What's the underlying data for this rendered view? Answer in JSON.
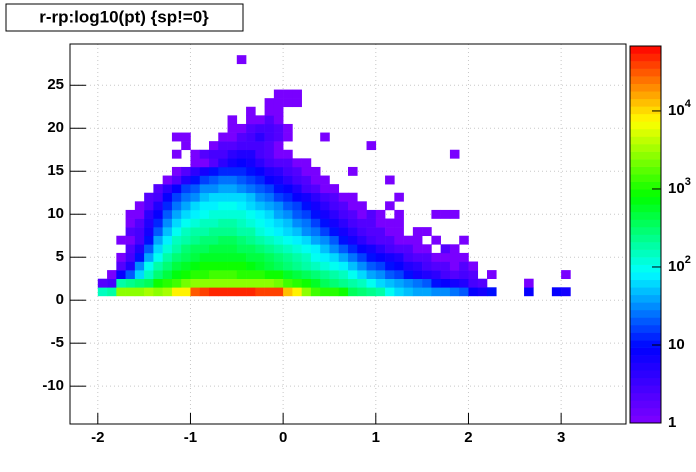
{
  "chart_data": {
    "type": "heatmap2d",
    "title": "r-rp:log10(pt) {sp!=0}",
    "xbins": [
      -2.0,
      -1.9,
      -1.8,
      -1.7,
      -1.6,
      -1.5,
      -1.4,
      -1.3,
      -1.2,
      -1.1,
      -1.0,
      -0.9,
      -0.8,
      -0.7,
      -0.6,
      -0.5,
      -0.4,
      -0.3,
      -0.2,
      -0.1,
      0.0,
      0.1,
      0.2,
      0.3,
      0.4,
      0.5,
      0.6,
      0.7,
      0.8,
      0.9,
      1.0,
      1.1,
      1.2,
      1.3,
      1.4,
      1.5,
      1.6,
      1.7,
      1.8,
      1.9,
      2.0,
      2.1,
      2.2,
      2.3,
      2.4,
      2.5,
      2.6,
      2.7,
      2.8,
      2.9,
      3.0,
      3.1
    ],
    "ybins": [
      0.5,
      1.5,
      2.5,
      3.5,
      4.5,
      5.5,
      6.5,
      7.5,
      8.5,
      9.5,
      10.5,
      11.5,
      12.5,
      13.5,
      14.5,
      15.5,
      16.5,
      17.5,
      18.5,
      19.5,
      20.5,
      21.5,
      22.5,
      23.5,
      24.5,
      25.5,
      26.5,
      27.5,
      28.5
    ],
    "z": [
      [
        150,
        200,
        2500,
        3000,
        3000,
        3500,
        3000,
        3500,
        9000,
        9000,
        30000,
        40000,
        45000,
        45000,
        45000,
        45000,
        45000,
        40000,
        40000,
        35000,
        12000,
        9000,
        3000,
        1500,
        1200,
        1000,
        800,
        400,
        300,
        250,
        200,
        100,
        60,
        50,
        40,
        40,
        30,
        30,
        25,
        20,
        8,
        6,
        10,
        0,
        0,
        0,
        8,
        0,
        0,
        8,
        6
      ],
      [
        2,
        3,
        200,
        250,
        300,
        400,
        800,
        1000,
        1500,
        2000,
        2500,
        3000,
        3000,
        3000,
        3000,
        3000,
        3000,
        2500,
        2500,
        2000,
        1500,
        1000,
        800,
        600,
        400,
        300,
        250,
        200,
        150,
        100,
        60,
        50,
        40,
        30,
        25,
        20,
        10,
        8,
        6,
        5,
        3,
        2,
        0,
        0,
        0,
        0,
        1,
        0,
        0,
        0,
        0
      ],
      [
        0,
        1,
        8,
        20,
        60,
        150,
        300,
        500,
        700,
        900,
        1000,
        1200,
        1300,
        1300,
        1300,
        1200,
        1100,
        1000,
        900,
        800,
        600,
        500,
        400,
        300,
        250,
        200,
        150,
        100,
        60,
        40,
        30,
        20,
        15,
        10,
        6,
        5,
        4,
        3,
        2,
        3,
        2,
        0,
        1,
        0,
        0,
        0,
        0,
        0,
        0,
        0,
        1
      ],
      [
        0,
        0,
        2,
        5,
        30,
        100,
        200,
        300,
        450,
        600,
        700,
        800,
        800,
        800,
        800,
        800,
        700,
        600,
        500,
        400,
        300,
        250,
        200,
        150,
        120,
        100,
        80,
        50,
        30,
        20,
        15,
        10,
        8,
        5,
        4,
        3,
        2,
        2,
        1,
        2,
        1,
        0,
        0,
        0,
        0,
        0,
        0,
        0,
        0,
        0,
        0
      ],
      [
        0,
        0,
        1,
        3,
        10,
        40,
        100,
        200,
        300,
        400,
        500,
        550,
        600,
        600,
        600,
        550,
        500,
        450,
        400,
        300,
        250,
        200,
        150,
        100,
        80,
        60,
        40,
        25,
        15,
        10,
        8,
        6,
        5,
        3,
        2,
        2,
        1,
        1,
        1,
        1,
        0,
        0,
        0,
        0,
        0,
        0,
        0,
        0,
        0,
        0,
        0
      ],
      [
        0,
        0,
        0,
        2,
        5,
        20,
        60,
        120,
        200,
        300,
        350,
        400,
        450,
        450,
        450,
        400,
        350,
        300,
        250,
        200,
        150,
        120,
        100,
        70,
        50,
        35,
        20,
        12,
        8,
        6,
        4,
        3,
        2,
        2,
        1,
        1,
        0,
        2,
        1,
        0,
        0,
        0,
        0,
        0,
        0,
        0,
        0,
        0,
        0,
        0,
        0
      ],
      [
        0,
        0,
        1,
        1,
        3,
        10,
        40,
        80,
        150,
        200,
        250,
        300,
        320,
        350,
        350,
        300,
        250,
        200,
        160,
        120,
        100,
        80,
        60,
        40,
        30,
        20,
        10,
        6,
        4,
        3,
        2,
        2,
        1,
        1,
        1,
        0,
        1,
        0,
        0,
        1,
        0,
        0,
        0,
        0,
        0,
        0,
        0,
        0,
        0,
        0,
        0
      ],
      [
        0,
        0,
        0,
        2,
        3,
        6,
        20,
        50,
        90,
        140,
        180,
        200,
        220,
        230,
        230,
        200,
        170,
        130,
        100,
        80,
        60,
        50,
        35,
        25,
        15,
        10,
        6,
        4,
        3,
        2,
        2,
        1,
        1,
        0,
        1,
        1,
        0,
        0,
        0,
        0,
        0,
        0,
        0,
        0,
        0,
        0,
        0,
        0,
        0,
        0,
        0
      ],
      [
        0,
        0,
        0,
        1,
        2,
        5,
        12,
        30,
        60,
        90,
        120,
        140,
        160,
        170,
        170,
        150,
        120,
        100,
        80,
        60,
        45,
        35,
        25,
        15,
        10,
        6,
        4,
        3,
        2,
        2,
        1,
        1,
        1,
        0,
        0,
        0,
        0,
        0,
        0,
        0,
        0,
        0,
        0,
        0,
        0,
        0,
        0,
        0,
        0,
        0,
        0
      ],
      [
        0,
        0,
        0,
        1,
        1,
        4,
        8,
        20,
        40,
        60,
        80,
        100,
        110,
        120,
        120,
        110,
        90,
        70,
        55,
        40,
        30,
        22,
        15,
        10,
        6,
        4,
        3,
        2,
        1,
        2,
        1,
        0,
        1,
        0,
        0,
        0,
        1,
        1,
        1,
        0,
        0,
        0,
        0,
        0,
        0,
        0,
        0,
        0,
        0,
        0,
        0
      ],
      [
        0,
        0,
        0,
        0,
        1,
        2,
        5,
        12,
        25,
        40,
        55,
        70,
        80,
        90,
        90,
        80,
        65,
        50,
        40,
        30,
        20,
        15,
        10,
        6,
        4,
        3,
        2,
        1,
        1,
        0,
        0,
        1,
        0,
        0,
        0,
        0,
        0,
        0,
        0,
        0,
        0,
        0,
        0,
        0,
        0,
        0,
        0,
        0,
        0,
        0,
        0
      ],
      [
        0,
        0,
        0,
        0,
        0,
        2,
        3,
        8,
        15,
        25,
        35,
        45,
        55,
        60,
        60,
        55,
        45,
        35,
        25,
        18,
        12,
        8,
        6,
        4,
        3,
        2,
        1,
        1,
        0,
        0,
        0,
        0,
        1,
        0,
        0,
        0,
        0,
        0,
        0,
        0,
        0,
        0,
        0,
        0,
        0,
        0,
        0,
        0,
        0,
        0,
        0
      ],
      [
        0,
        0,
        0,
        0,
        0,
        0,
        2,
        4,
        8,
        15,
        22,
        30,
        35,
        40,
        40,
        35,
        28,
        22,
        15,
        10,
        8,
        5,
        3,
        2,
        1,
        1,
        0,
        0,
        0,
        0,
        0,
        0,
        0,
        0,
        0,
        0,
        0,
        0,
        0,
        0,
        0,
        0,
        0,
        0,
        0,
        0,
        0,
        0,
        0,
        0,
        0
      ],
      [
        0,
        0,
        0,
        0,
        0,
        0,
        0,
        1,
        2,
        5,
        10,
        15,
        20,
        25,
        25,
        20,
        16,
        12,
        8,
        6,
        4,
        3,
        2,
        1,
        1,
        0,
        0,
        0,
        0,
        0,
        0,
        1,
        0,
        0,
        0,
        0,
        0,
        0,
        0,
        0,
        0,
        0,
        0,
        0,
        0,
        0,
        0,
        0,
        0,
        0,
        0
      ],
      [
        0,
        0,
        0,
        0,
        0,
        0,
        0,
        0,
        1,
        2,
        4,
        6,
        10,
        12,
        14,
        12,
        10,
        8,
        5,
        4,
        3,
        2,
        1,
        1,
        0,
        0,
        0,
        1,
        0,
        0,
        0,
        0,
        0,
        0,
        0,
        0,
        0,
        0,
        0,
        0,
        0,
        0,
        0,
        0,
        0,
        0,
        0,
        0,
        0,
        0,
        0
      ],
      [
        0,
        0,
        0,
        0,
        0,
        0,
        0,
        0,
        0,
        0,
        1,
        1,
        2,
        4,
        6,
        8,
        6,
        4,
        3,
        2,
        2,
        1,
        1,
        0,
        0,
        0,
        0,
        0,
        0,
        0,
        0,
        0,
        0,
        0,
        0,
        0,
        0,
        0,
        0,
        0,
        0,
        0,
        0,
        0,
        0,
        0,
        0,
        0,
        0,
        0,
        0
      ],
      [
        0,
        0,
        0,
        0,
        0,
        0,
        0,
        0,
        1,
        0,
        1,
        2,
        3,
        3,
        4,
        5,
        5,
        3,
        2,
        1,
        1,
        0,
        0,
        0,
        0,
        0,
        0,
        0,
        0,
        0,
        0,
        0,
        0,
        0,
        0,
        0,
        0,
        0,
        1,
        0,
        0,
        0,
        0,
        0,
        0,
        0,
        0,
        0,
        0,
        0,
        0
      ],
      [
        0,
        0,
        0,
        0,
        0,
        0,
        0,
        0,
        0,
        1,
        0,
        0,
        1,
        2,
        2,
        3,
        3,
        3,
        2,
        1,
        0,
        0,
        0,
        0,
        0,
        0,
        0,
        0,
        0,
        1,
        0,
        0,
        0,
        0,
        0,
        0,
        0,
        0,
        0,
        0,
        0,
        0,
        0,
        0,
        0,
        0,
        0,
        0,
        0,
        0,
        0
      ],
      [
        0,
        0,
        0,
        0,
        0,
        0,
        0,
        0,
        1,
        1,
        0,
        0,
        0,
        1,
        1,
        2,
        3,
        4,
        3,
        2,
        1,
        0,
        0,
        0,
        1,
        0,
        0,
        0,
        0,
        0,
        0,
        0,
        0,
        0,
        0,
        0,
        0,
        0,
        0,
        0,
        0,
        0,
        0,
        0,
        0,
        0,
        0,
        0,
        0,
        0,
        0
      ],
      [
        0,
        0,
        0,
        0,
        0,
        0,
        0,
        0,
        0,
        0,
        0,
        0,
        0,
        0,
        1,
        1,
        2,
        3,
        3,
        2,
        1,
        0,
        0,
        0,
        0,
        0,
        0,
        0,
        0,
        0,
        0,
        0,
        0,
        0,
        0,
        0,
        0,
        0,
        0,
        0,
        0,
        0,
        0,
        0,
        0,
        0,
        0,
        0,
        0,
        0,
        0
      ],
      [
        0,
        0,
        0,
        0,
        0,
        0,
        0,
        0,
        0,
        0,
        0,
        0,
        0,
        0,
        1,
        0,
        1,
        1,
        2,
        1,
        0,
        0,
        0,
        0,
        0,
        0,
        0,
        0,
        0,
        0,
        0,
        0,
        0,
        0,
        0,
        0,
        0,
        0,
        0,
        0,
        0,
        0,
        0,
        0,
        0,
        0,
        0,
        0,
        0,
        0,
        0
      ],
      [
        0,
        0,
        0,
        0,
        0,
        0,
        0,
        0,
        0,
        0,
        0,
        0,
        0,
        0,
        0,
        0,
        1,
        0,
        1,
        1,
        0,
        0,
        0,
        0,
        0,
        0,
        0,
        0,
        0,
        0,
        0,
        0,
        0,
        0,
        0,
        0,
        0,
        0,
        0,
        0,
        0,
        0,
        0,
        0,
        0,
        0,
        0,
        0,
        0,
        0,
        0
      ],
      [
        0,
        0,
        0,
        0,
        0,
        0,
        0,
        0,
        0,
        0,
        0,
        0,
        0,
        0,
        0,
        0,
        0,
        0,
        1,
        1,
        1,
        1,
        0,
        0,
        0,
        0,
        0,
        0,
        0,
        0,
        0,
        0,
        0,
        0,
        0,
        0,
        0,
        0,
        0,
        0,
        0,
        0,
        0,
        0,
        0,
        0,
        0,
        0,
        0,
        0,
        0
      ],
      [
        0,
        0,
        0,
        0,
        0,
        0,
        0,
        0,
        0,
        0,
        0,
        0,
        0,
        0,
        0,
        0,
        0,
        0,
        0,
        1,
        1,
        1,
        0,
        0,
        0,
        0,
        0,
        0,
        0,
        0,
        0,
        0,
        0,
        0,
        0,
        0,
        0,
        0,
        0,
        0,
        0,
        0,
        0,
        0,
        0,
        0,
        0,
        0,
        0,
        0,
        0
      ],
      [
        0,
        0,
        0,
        0,
        0,
        0,
        0,
        0,
        0,
        0,
        0,
        0,
        0,
        0,
        0,
        0,
        0,
        0,
        0,
        0,
        0,
        0,
        0,
        0,
        0,
        0,
        0,
        0,
        0,
        0,
        0,
        0,
        0,
        0,
        0,
        0,
        0,
        0,
        0,
        0,
        0,
        0,
        0,
        0,
        0,
        0,
        0,
        0,
        0,
        0,
        0
      ],
      [
        0,
        0,
        0,
        0,
        0,
        0,
        0,
        0,
        0,
        0,
        0,
        0,
        0,
        0,
        0,
        0,
        0,
        0,
        0,
        0,
        0,
        0,
        0,
        0,
        0,
        0,
        0,
        0,
        0,
        0,
        0,
        0,
        0,
        0,
        0,
        0,
        0,
        0,
        0,
        0,
        0,
        0,
        0,
        0,
        0,
        0,
        0,
        0,
        0,
        0,
        0
      ],
      [
        0,
        0,
        0,
        0,
        0,
        0,
        0,
        0,
        0,
        0,
        0,
        0,
        0,
        0,
        0,
        0,
        0,
        0,
        0,
        0,
        0,
        0,
        0,
        0,
        0,
        0,
        0,
        0,
        0,
        0,
        0,
        0,
        0,
        0,
        0,
        0,
        0,
        0,
        0,
        0,
        0,
        0,
        0,
        0,
        0,
        0,
        0,
        0,
        0,
        0,
        0
      ],
      [
        0,
        0,
        0,
        0,
        0,
        0,
        0,
        0,
        0,
        0,
        0,
        0,
        0,
        0,
        0,
        1,
        0,
        0,
        0,
        0,
        0,
        0,
        0,
        0,
        0,
        0,
        0,
        0,
        0,
        0,
        0,
        0,
        0,
        0,
        0,
        0,
        0,
        0,
        0,
        0,
        0,
        0,
        0,
        0,
        0,
        0,
        0,
        0,
        0,
        0,
        0
      ]
    ],
    "xlim": [
      -2.3,
      3.7
    ],
    "xticks": [
      -2,
      -1,
      0,
      1,
      2,
      3
    ],
    "ylim": [
      -14.4,
      29.8
    ],
    "yticks": [
      -10,
      -5,
      0,
      5,
      10,
      15,
      20,
      25
    ],
    "zlim": [
      1,
      68000
    ],
    "zlog": true,
    "zticks": [
      1,
      10,
      {
        "value": 100,
        "label": "10",
        "exponent": "2"
      },
      {
        "value": 1000,
        "label": "10",
        "exponent": "3"
      },
      {
        "value": 10000,
        "label": "10",
        "exponent": "4"
      }
    ],
    "palette": [
      "#7f00ff",
      "#0000ff",
      "#00ffff",
      "#00ff00",
      "#ffff00",
      "#ff0000"
    ],
    "grid": true
  }
}
